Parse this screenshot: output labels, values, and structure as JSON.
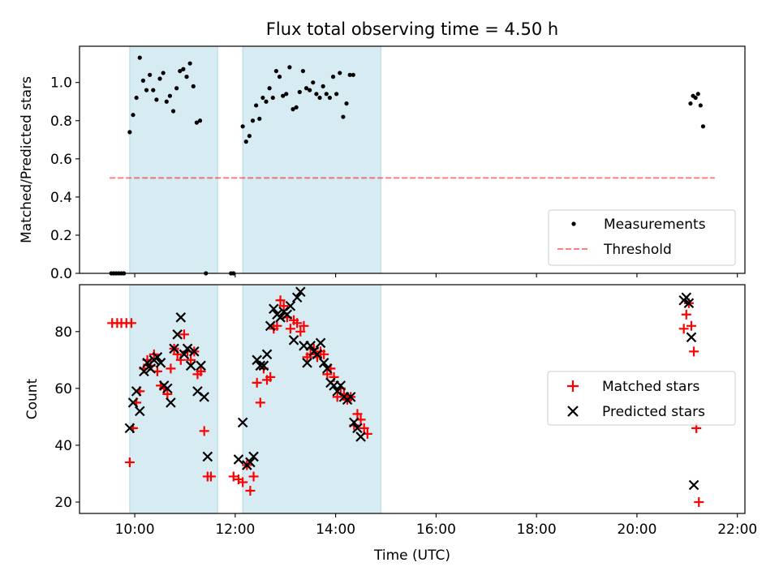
{
  "title": "Flux total observing time = 4.50 h",
  "colors": {
    "shade": "#add8e6",
    "measurement": "#000000",
    "threshold": "#ff0000",
    "matched": "#ff0000",
    "predicted": "#000000"
  },
  "chart_data": [
    {
      "type": "scatter",
      "ylabel": "Matched/Predicted stars",
      "ylim": [
        0,
        1.19
      ],
      "yticks": [
        "0.0",
        "0.2",
        "0.4",
        "0.6",
        "0.8",
        "1.0"
      ],
      "legend": {
        "placement": "lower-right",
        "entries": [
          "Measurements",
          "Threshold"
        ]
      },
      "shaded_intervals": [
        [
          "09:54",
          "11:39"
        ],
        [
          "12:09",
          "14:54"
        ]
      ],
      "threshold": {
        "value": 0.5,
        "x_range": [
          "09:30",
          "21:33"
        ]
      },
      "series": [
        {
          "name": "Measurements",
          "marker": "dot",
          "points": [
            [
              "09:32",
              0
            ],
            [
              "09:35",
              0
            ],
            [
              "09:38",
              0
            ],
            [
              "09:41",
              0
            ],
            [
              "09:44",
              0
            ],
            [
              "09:47",
              0
            ],
            [
              "09:54",
              0.74
            ],
            [
              "09:58",
              0.83
            ],
            [
              "10:02",
              0.92
            ],
            [
              "10:06",
              1.13
            ],
            [
              "10:10",
              1.01
            ],
            [
              "10:14",
              0.96
            ],
            [
              "10:18",
              1.04
            ],
            [
              "10:22",
              0.96
            ],
            [
              "10:26",
              0.91
            ],
            [
              "10:30",
              1.02
            ],
            [
              "10:34",
              1.05
            ],
            [
              "10:38",
              0.9
            ],
            [
              "10:42",
              0.93
            ],
            [
              "10:46",
              0.85
            ],
            [
              "10:50",
              0.97
            ],
            [
              "10:54",
              1.06
            ],
            [
              "10:58",
              1.07
            ],
            [
              "11:02",
              1.03
            ],
            [
              "11:06",
              1.1
            ],
            [
              "11:10",
              0.98
            ],
            [
              "11:14",
              0.79
            ],
            [
              "11:18",
              0.8
            ],
            [
              "11:25",
              0
            ],
            [
              "11:55",
              0
            ],
            [
              "11:58",
              0
            ],
            [
              "12:09",
              0.77
            ],
            [
              "12:13",
              0.69
            ],
            [
              "12:17",
              0.72
            ],
            [
              "12:21",
              0.8
            ],
            [
              "12:25",
              0.88
            ],
            [
              "12:29",
              0.81
            ],
            [
              "12:33",
              0.92
            ],
            [
              "12:37",
              0.9
            ],
            [
              "12:41",
              0.97
            ],
            [
              "12:45",
              0.92
            ],
            [
              "12:49",
              1.06
            ],
            [
              "12:53",
              1.03
            ],
            [
              "12:57",
              0.93
            ],
            [
              "13:01",
              0.94
            ],
            [
              "13:05",
              1.08
            ],
            [
              "13:09",
              0.86
            ],
            [
              "13:13",
              0.87
            ],
            [
              "13:17",
              0.95
            ],
            [
              "13:21",
              1.06
            ],
            [
              "13:25",
              0.97
            ],
            [
              "13:29",
              0.96
            ],
            [
              "13:33",
              1.0
            ],
            [
              "13:37",
              0.94
            ],
            [
              "13:41",
              0.92
            ],
            [
              "13:45",
              0.98
            ],
            [
              "13:49",
              0.94
            ],
            [
              "13:53",
              0.92
            ],
            [
              "13:57",
              1.03
            ],
            [
              "14:01",
              0.94
            ],
            [
              "14:05",
              1.05
            ],
            [
              "14:09",
              0.82
            ],
            [
              "14:13",
              0.89
            ],
            [
              "14:17",
              1.04
            ],
            [
              "14:21",
              1.04
            ],
            [
              "21:04",
              0.89
            ],
            [
              "21:07",
              0.93
            ],
            [
              "21:10",
              0.92
            ],
            [
              "21:13",
              0.94
            ],
            [
              "21:16",
              0.88
            ],
            [
              "21:19",
              0.77
            ]
          ]
        }
      ]
    },
    {
      "type": "scatter",
      "xlabel": "Time (UTC)",
      "ylabel": "Count",
      "ylim": [
        16,
        96.5
      ],
      "yticks": [
        "20",
        "40",
        "60",
        "80"
      ],
      "xlim": [
        "08:54",
        "22:09"
      ],
      "xticks": [
        "10:00",
        "12:00",
        "14:00",
        "16:00",
        "18:00",
        "20:00",
        "22:00"
      ],
      "legend": {
        "placement": "center-right",
        "entries": [
          "Matched stars",
          "Predicted stars"
        ]
      },
      "shaded_intervals": [
        [
          "09:54",
          "11:39"
        ],
        [
          "12:09",
          "14:54"
        ]
      ],
      "series": [
        {
          "name": "Matched stars",
          "marker": "plus",
          "points": [
            [
              "09:33",
              83
            ],
            [
              "09:39",
              83
            ],
            [
              "09:44",
              83
            ],
            [
              "09:50",
              83
            ],
            [
              "09:56",
              83
            ],
            [
              "09:54",
              34
            ],
            [
              "09:58",
              46
            ],
            [
              "10:02",
              55
            ],
            [
              "10:06",
              59
            ],
            [
              "10:11",
              67
            ],
            [
              "10:15",
              70
            ],
            [
              "10:19",
              68
            ],
            [
              "10:23",
              72
            ],
            [
              "10:27",
              66
            ],
            [
              "10:31",
              61
            ],
            [
              "10:35",
              60
            ],
            [
              "10:39",
              58
            ],
            [
              "10:43",
              67
            ],
            [
              "10:47",
              74
            ],
            [
              "10:51",
              72
            ],
            [
              "10:55",
              70
            ],
            [
              "10:59",
              79
            ],
            [
              "11:03",
              73
            ],
            [
              "11:07",
              70
            ],
            [
              "11:11",
              73
            ],
            [
              "11:15",
              65
            ],
            [
              "11:19",
              66
            ],
            [
              "11:23",
              45
            ],
            [
              "11:27",
              29
            ],
            [
              "11:31",
              29
            ],
            [
              "11:58",
              29
            ],
            [
              "12:04",
              28
            ],
            [
              "12:09",
              27
            ],
            [
              "12:14",
              33
            ],
            [
              "12:18",
              24
            ],
            [
              "12:22",
              29
            ],
            [
              "12:26",
              62
            ],
            [
              "12:30",
              55
            ],
            [
              "12:34",
              67
            ],
            [
              "12:38",
              63
            ],
            [
              "12:42",
              64
            ],
            [
              "12:46",
              81
            ],
            [
              "12:50",
              82
            ],
            [
              "12:54",
              91
            ],
            [
              "12:58",
              89
            ],
            [
              "13:02",
              85
            ],
            [
              "13:06",
              81
            ],
            [
              "13:10",
              84
            ],
            [
              "13:14",
              83
            ],
            [
              "13:18",
              80
            ],
            [
              "13:22",
              82
            ],
            [
              "13:26",
              71
            ],
            [
              "13:30",
              72
            ],
            [
              "13:34",
              74
            ],
            [
              "13:38",
              71
            ],
            [
              "13:42",
              73
            ],
            [
              "13:46",
              72
            ],
            [
              "13:50",
              65
            ],
            [
              "13:54",
              67
            ],
            [
              "13:58",
              64
            ],
            [
              "14:02",
              57
            ],
            [
              "14:06",
              60
            ],
            [
              "14:10",
              58
            ],
            [
              "14:14",
              56
            ],
            [
              "14:18",
              57
            ],
            [
              "14:22",
              47
            ],
            [
              "14:26",
              51
            ],
            [
              "14:30",
              49
            ],
            [
              "14:34",
              46
            ],
            [
              "14:38",
              44
            ],
            [
              "20:56",
              81
            ],
            [
              "20:59",
              86
            ],
            [
              "21:02",
              90
            ],
            [
              "21:05",
              82
            ],
            [
              "21:08",
              73
            ],
            [
              "21:11",
              46
            ],
            [
              "21:14",
              20
            ]
          ]
        },
        {
          "name": "Predicted stars",
          "marker": "x",
          "points": [
            [
              "09:54",
              46
            ],
            [
              "09:58",
              55
            ],
            [
              "10:02",
              59
            ],
            [
              "10:06",
              52
            ],
            [
              "10:11",
              66
            ],
            [
              "10:15",
              69
            ],
            [
              "10:19",
              67
            ],
            [
              "10:23",
              70
            ],
            [
              "10:27",
              71
            ],
            [
              "10:31",
              69
            ],
            [
              "10:35",
              61
            ],
            [
              "10:39",
              60
            ],
            [
              "10:43",
              55
            ],
            [
              "10:47",
              74
            ],
            [
              "10:51",
              79
            ],
            [
              "10:55",
              85
            ],
            [
              "10:59",
              72
            ],
            [
              "11:03",
              74
            ],
            [
              "11:07",
              68
            ],
            [
              "11:11",
              73
            ],
            [
              "11:15",
              59
            ],
            [
              "11:19",
              68
            ],
            [
              "11:23",
              57
            ],
            [
              "11:27",
              36
            ],
            [
              "12:04",
              35
            ],
            [
              "12:09",
              48
            ],
            [
              "12:14",
              33
            ],
            [
              "12:18",
              34
            ],
            [
              "12:22",
              36
            ],
            [
              "12:26",
              70
            ],
            [
              "12:30",
              68
            ],
            [
              "12:34",
              68
            ],
            [
              "12:38",
              72
            ],
            [
              "12:42",
              82
            ],
            [
              "12:46",
              88
            ],
            [
              "12:50",
              86
            ],
            [
              "12:54",
              85
            ],
            [
              "12:58",
              87
            ],
            [
              "13:02",
              86
            ],
            [
              "13:06",
              89
            ],
            [
              "13:10",
              77
            ],
            [
              "13:14",
              92
            ],
            [
              "13:18",
              94
            ],
            [
              "13:22",
              75
            ],
            [
              "13:26",
              69
            ],
            [
              "13:30",
              75
            ],
            [
              "13:34",
              73
            ],
            [
              "13:38",
              72
            ],
            [
              "13:42",
              76
            ],
            [
              "13:46",
              69
            ],
            [
              "13:50",
              67
            ],
            [
              "13:54",
              62
            ],
            [
              "13:58",
              61
            ],
            [
              "14:02",
              59
            ],
            [
              "14:06",
              61
            ],
            [
              "14:10",
              57
            ],
            [
              "14:14",
              56
            ],
            [
              "14:18",
              57
            ],
            [
              "14:22",
              48
            ],
            [
              "14:26",
              46
            ],
            [
              "14:30",
              43
            ],
            [
              "20:56",
              91
            ],
            [
              "20:59",
              92
            ],
            [
              "21:02",
              90
            ],
            [
              "21:05",
              78
            ],
            [
              "21:08",
              26
            ]
          ]
        }
      ]
    }
  ]
}
